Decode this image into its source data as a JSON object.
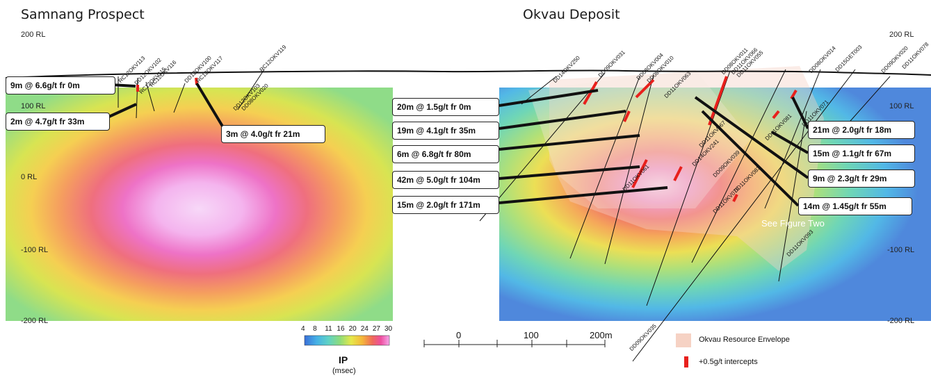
{
  "titles": {
    "left": "Samnang Prospect",
    "right": "Okvau Deposit"
  },
  "rl_labels_left": [
    "200 RL",
    "100 RL",
    "0 RL",
    "-100 RL",
    "-200 RL"
  ],
  "rl_labels_right": [
    "200 RL",
    "100 RL",
    "-100 RL",
    "-200 RL"
  ],
  "callouts_left": [
    "9m @ 6.6g/t fr 0m",
    "2m @ 4.7g/t fr 33m",
    "3m @ 4.0g/t fr 21m"
  ],
  "callouts_mid": [
    "20m @ 1.5g/t fr 0m",
    "19m @ 4.1g/t fr 35m",
    "6m @ 6.8g/t fr 80m",
    "42m @ 5.0g/t fr 104m",
    "15m @ 2.0g/t fr 171m"
  ],
  "callouts_right": [
    "21m @ 2.0g/t fr 18m",
    "15m @ 1.1g/t fr 67m",
    "9m @ 2.3g/t fr 29m",
    "14m @ 1.45g/t fr 55m"
  ],
  "hole_labels_left": [
    "RC12OKV113",
    "DD12OKV102",
    "RC12OKV116",
    "RC12OKV115",
    "DD12OKV100",
    "RC12OKV117",
    "RC12OKV119",
    "DD12OKV103",
    "DD08OKV020"
  ],
  "hole_labels_right": [
    "DD14OKV250",
    "DD09OKV031",
    "DD08OKV004",
    "DD08OKV010",
    "DD11OKV063",
    "DD08OKV011",
    "DD11OKV066",
    "DD11OKV055",
    "DD08OKV014",
    "DD15GET003",
    "DD09OKV020",
    "DD11OKV078",
    "DD11OKV071",
    "DD11OKV081",
    "DD11OKV067",
    "DD14OKV241",
    "DD09OKV039",
    "DD11OKV061",
    "DD11OKV070",
    "DD11OKV083",
    "DD11OKV093",
    "DD09OKV035"
  ],
  "colorbar": {
    "ticks": [
      "4",
      "8",
      "11",
      "16",
      "20",
      "24",
      "27",
      "30"
    ],
    "title": "IP",
    "unit": "(msec)",
    "colors": [
      "#3a6fd8",
      "#45b0e6",
      "#5fd2c6",
      "#8fdc7a",
      "#e6e84a",
      "#f5b73a",
      "#ef6a5a",
      "#ee4fa0",
      "#f6a6ea"
    ]
  },
  "scale_bar": {
    "labels": [
      "0",
      "100",
      "200m"
    ]
  },
  "legend": {
    "items": [
      {
        "label": "Okvau Resource Envelope",
        "color": "#f6d2c4"
      },
      {
        "label": "+0.5g/t intercepts",
        "color": "#e8201c"
      }
    ]
  },
  "annotation": "See Figure Two"
}
